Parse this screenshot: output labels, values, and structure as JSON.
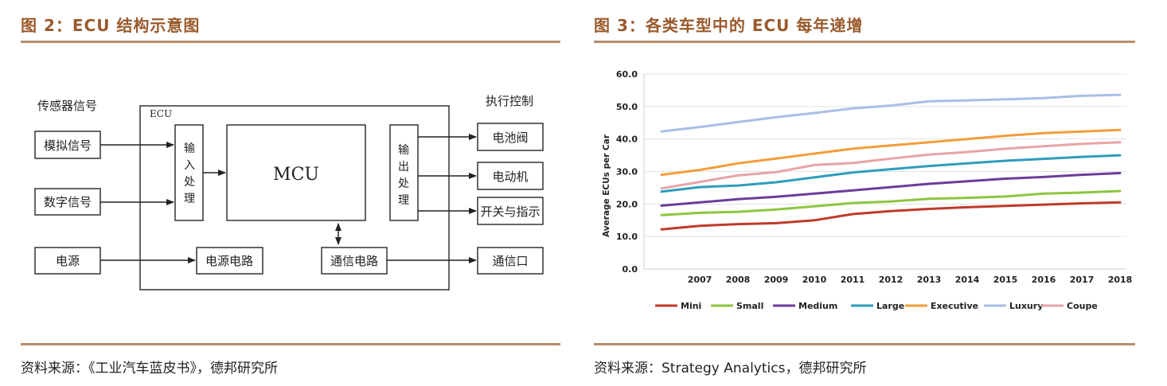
{
  "left_panel": {
    "title": "图 2：ECU 结构示意图",
    "source": "资料来源：《工业汽车蓝皮书》，德邦研究所",
    "diagram": {
      "sensor_header": "传感器信号",
      "actuator_header": "执行控制",
      "ecu_label": "ECU",
      "inputs": [
        "模拟信号",
        "数字信号",
        "电源"
      ],
      "input_processing": [
        "输",
        "入",
        "处",
        "理"
      ],
      "mcu": "MCU",
      "output_processing": [
        "输",
        "出",
        "处",
        "理"
      ],
      "power_circuit": "电源电路",
      "comm_circuit": "通信电路",
      "outputs": [
        "电池阀",
        "电动机",
        "开关与指示",
        "通信口"
      ]
    }
  },
  "right_panel": {
    "title": "图 3：各类车型中的 ECU 每年递增",
    "source": "资料来源：Strategy Analytics，德邦研究所"
  },
  "chart_data": {
    "type": "line",
    "title": "",
    "xlabel": "",
    "ylabel": "Average ECUs per Car",
    "x": [
      "2006",
      "2007",
      "2008",
      "2009",
      "2010",
      "2011",
      "2012",
      "2013",
      "2014",
      "2015",
      "2016",
      "2017",
      "2018"
    ],
    "x_tick_labels": [
      "2007",
      "2008",
      "2009",
      "2010",
      "2011",
      "2012",
      "2013",
      "2014",
      "2015",
      "2016",
      "2017",
      "2018"
    ],
    "ylim": [
      0,
      60
    ],
    "yticks": [
      "0.0",
      "10.0",
      "20.0",
      "30.0",
      "40.0",
      "50.0",
      "60.0"
    ],
    "grid": true,
    "legend_position": "bottom",
    "series": [
      {
        "name": "Mini",
        "color": "#c0392b",
        "values": [
          12.2,
          13.3,
          13.8,
          14.1,
          15.0,
          16.9,
          17.8,
          18.5,
          19.0,
          19.4,
          19.8,
          20.2,
          20.5
        ]
      },
      {
        "name": "Small",
        "color": "#8dc63f",
        "values": [
          16.6,
          17.3,
          17.6,
          18.3,
          19.3,
          20.3,
          20.8,
          21.6,
          21.9,
          22.3,
          23.2,
          23.5,
          24.0
        ]
      },
      {
        "name": "Medium",
        "color": "#6a3d9a",
        "values": [
          19.5,
          20.5,
          21.5,
          22.2,
          23.2,
          24.2,
          25.2,
          26.2,
          27.0,
          27.8,
          28.3,
          29.0,
          29.5
        ]
      },
      {
        "name": "Large",
        "color": "#2e9dbd",
        "values": [
          23.8,
          25.2,
          25.7,
          26.7,
          28.2,
          29.7,
          30.7,
          31.7,
          32.5,
          33.3,
          33.9,
          34.5,
          35.0
        ]
      },
      {
        "name": "Executive",
        "color": "#f39c3a",
        "values": [
          29.0,
          30.5,
          32.5,
          34.0,
          35.5,
          37.0,
          38.0,
          39.0,
          40.0,
          41.0,
          41.8,
          42.3,
          42.8
        ]
      },
      {
        "name": "Luxury",
        "color": "#a9bde6",
        "values": [
          42.3,
          43.7,
          45.2,
          46.7,
          48.0,
          49.4,
          50.3,
          51.6,
          51.9,
          52.2,
          52.6,
          53.3,
          53.6
        ]
      },
      {
        "name": "Coupe",
        "color": "#e8a4a4",
        "values": [
          24.8,
          26.8,
          28.8,
          29.8,
          32.0,
          32.6,
          34.0,
          35.2,
          36.0,
          37.0,
          37.8,
          38.5,
          39.0
        ]
      }
    ]
  }
}
